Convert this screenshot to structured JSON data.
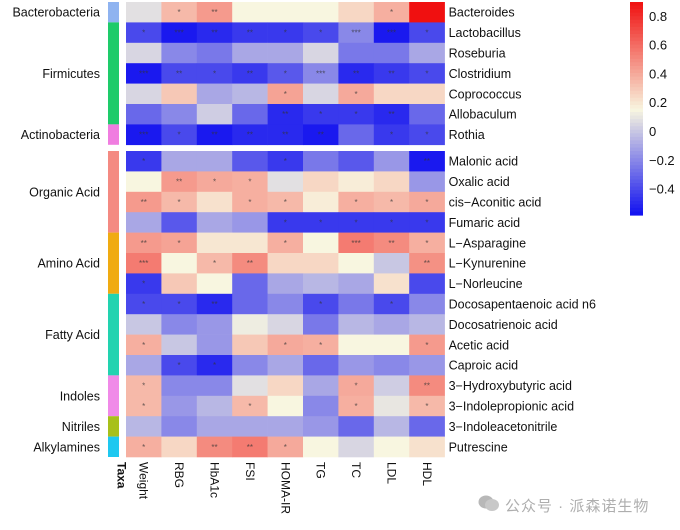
{
  "chart_data": {
    "type": "heatmap",
    "title": "",
    "xlabel": "",
    "ylabel": "",
    "columns": [
      "Weight",
      "RBG",
      "HbA1c",
      "FSI",
      "HOMA-IR",
      "TG",
      "TC",
      "LDL",
      "HDL"
    ],
    "taxa_column_label": "Taxa",
    "row_blocks": [
      {
        "name": "microbes",
        "groups": [
          {
            "name": "Bacterobacteria",
            "color": "#8fb3f0",
            "rows": [
              "Bacteroides"
            ]
          },
          {
            "name": "Firmicutes",
            "color": "#1ecb6a",
            "rows": [
              "Lactobacillus",
              "Roseburia",
              "Clostridium",
              "Coprococcus",
              "Allobaculum"
            ]
          },
          {
            "name": "Actinobacteria",
            "color": "#f07de0",
            "rows": [
              "Rothia"
            ]
          }
        ]
      },
      {
        "name": "metabolites",
        "groups": [
          {
            "name": "Organic Acid",
            "color": "#f48a82",
            "rows": [
              "Malonic acid",
              "Oxalic acid",
              "cis-Aconitic acid",
              "Fumaric acid"
            ]
          },
          {
            "name": "Amino Acid",
            "color": "#f0ab12",
            "rows": [
              "L-Asparagine",
              "L-Kynurenine",
              "L-Norleucine"
            ]
          },
          {
            "name": "Fatty Acid",
            "color": "#22d3b0",
            "rows": [
              "Docosapentaenoic acid n6",
              "Docosatrienoic acid",
              "Acetic acid",
              "Caproic acid"
            ]
          },
          {
            "name": "Indoles",
            "color": "#f08ae8",
            "rows": [
              "3-Hydroxybutyric acid",
              "3-Indolepropionic acid"
            ]
          },
          {
            "name": "Nitriles",
            "color": "#a8c01a",
            "rows": [
              "3-Indoleacetonitrile"
            ]
          },
          {
            "name": "Alkylamines",
            "color": "#1ec8f0",
            "rows": [
              "Putrescine"
            ]
          }
        ]
      }
    ],
    "values": {
      "Bacteroides": [
        0.08,
        0.35,
        0.45,
        0.15,
        0.15,
        0.15,
        0.25,
        0.38,
        0.9
      ],
      "Lactobacillus": [
        -0.4,
        -0.55,
        -0.5,
        -0.45,
        -0.45,
        -0.4,
        -0.2,
        -0.55,
        -0.4
      ],
      "Roseburia": [
        0.05,
        -0.2,
        -0.25,
        -0.1,
        -0.1,
        0.05,
        -0.25,
        -0.25,
        -0.1
      ],
      "Clostridium": [
        -0.55,
        -0.4,
        -0.4,
        -0.45,
        -0.35,
        -0.2,
        -0.5,
        -0.45,
        -0.4
      ],
      "Coprococcus": [
        0.05,
        0.3,
        -0.1,
        -0.05,
        0.42,
        0.05,
        0.4,
        0.25,
        0.25
      ],
      "Allobaculum": [
        -0.3,
        -0.2,
        0.02,
        -0.3,
        -0.5,
        -0.45,
        -0.45,
        -0.5,
        -0.3
      ],
      "Rothia": [
        -0.55,
        -0.4,
        -0.55,
        -0.5,
        -0.5,
        -0.55,
        -0.3,
        -0.45,
        -0.4
      ],
      "Malonic acid": [
        -0.45,
        -0.1,
        -0.1,
        -0.35,
        -0.45,
        -0.25,
        -0.35,
        -0.15,
        -0.55
      ],
      "Oxalic acid": [
        0.15,
        0.45,
        0.4,
        0.38,
        0.08,
        0.25,
        0.18,
        0.25,
        -0.15
      ],
      "cis-Aconitic acid": [
        0.45,
        0.35,
        0.22,
        0.38,
        0.35,
        0.18,
        0.38,
        0.35,
        0.4
      ],
      "Fumaric acid": [
        -0.1,
        -0.35,
        -0.1,
        -0.15,
        -0.45,
        -0.45,
        -0.45,
        -0.45,
        -0.45
      ],
      "L-Asparagine": [
        0.45,
        0.42,
        0.2,
        0.2,
        0.38,
        0.15,
        0.55,
        0.5,
        0.38
      ],
      "L-Kynurenine": [
        0.55,
        0.15,
        0.35,
        0.5,
        0.25,
        0.25,
        0.15,
        0.0,
        0.48
      ],
      "L-Norleucine": [
        -0.45,
        0.3,
        0.15,
        -0.3,
        -0.1,
        -0.05,
        -0.1,
        0.22,
        -0.4
      ],
      "Docosapentaenoic acid n6": [
        -0.4,
        -0.4,
        -0.5,
        -0.3,
        -0.2,
        -0.4,
        -0.25,
        -0.4,
        -0.2
      ],
      "Docosatrienoic acid": [
        0.0,
        -0.2,
        -0.15,
        0.12,
        0.05,
        -0.25,
        -0.05,
        -0.1,
        -0.05
      ],
      "Acetic acid": [
        0.38,
        0.0,
        -0.15,
        0.3,
        0.4,
        0.38,
        0.15,
        0.15,
        0.45
      ],
      "Caproic acid": [
        -0.1,
        -0.4,
        -0.5,
        -0.2,
        -0.1,
        -0.3,
        -0.15,
        -0.2,
        -0.15
      ],
      "3-Hydroxybutyric acid": [
        0.35,
        -0.2,
        -0.2,
        0.08,
        0.25,
        -0.1,
        0.4,
        0.02,
        0.5
      ],
      "3-Indolepropionic acid": [
        0.35,
        -0.15,
        -0.05,
        0.35,
        0.15,
        -0.2,
        0.38,
        0.1,
        0.35
      ],
      "3-Indoleacetonitrile": [
        -0.05,
        -0.2,
        -0.1,
        -0.1,
        -0.1,
        -0.15,
        -0.3,
        -0.05,
        -0.3
      ],
      "Putrescine": [
        0.38,
        0.25,
        0.5,
        0.55,
        0.4,
        0.15,
        0.05,
        0.15,
        0.22
      ]
    },
    "significance": {
      "Bacteroides": [
        "",
        "*",
        "**",
        "",
        "",
        "",
        "",
        "*",
        ""
      ],
      "Lactobacillus": [
        "*",
        "***",
        "**",
        "**",
        "*",
        "*",
        "***",
        "***",
        "*"
      ],
      "Roseburia": [
        "",
        "",
        "",
        "",
        "",
        "",
        "",
        "",
        ""
      ],
      "Clostridium": [
        "***",
        "**",
        "*",
        "**",
        "*",
        "***",
        "**",
        "**",
        "*"
      ],
      "Coprococcus": [
        "",
        "",
        "",
        "",
        "*",
        "",
        "*",
        "",
        ""
      ],
      "Allobaculum": [
        "",
        "",
        "",
        "",
        "**",
        "*",
        "*",
        "**",
        ""
      ],
      "Rothia": [
        "***",
        "*",
        "**",
        "**",
        "**",
        "**",
        "",
        "*",
        "*"
      ],
      "Malonic acid": [
        "*",
        "",
        "",
        "",
        "*",
        "",
        "",
        "",
        "**"
      ],
      "Oxalic acid": [
        "",
        "**",
        "*",
        "*",
        "",
        "",
        "",
        "",
        ""
      ],
      "cis-Aconitic acid": [
        "**",
        "*",
        "",
        "*",
        "*",
        "",
        "*",
        "*",
        "*"
      ],
      "Fumaric acid": [
        "",
        "",
        "",
        "",
        "*",
        "*",
        "*",
        "*",
        "*"
      ],
      "L-Asparagine": [
        "**",
        "*",
        "",
        "",
        "*",
        "",
        "***",
        "**",
        "*"
      ],
      "L-Kynurenine": [
        "***",
        "",
        "*",
        "**",
        "",
        "",
        "",
        "",
        "**"
      ],
      "L-Norleucine": [
        "*",
        "",
        "",
        "",
        "",
        "",
        "",
        "",
        ""
      ],
      "Docosapentaenoic acid n6": [
        "*",
        "*",
        "**",
        "",
        "",
        "*",
        "",
        "*",
        ""
      ],
      "Docosatrienoic acid": [
        "",
        "",
        "",
        "",
        "",
        "",
        "",
        "",
        ""
      ],
      "Acetic acid": [
        "*",
        "",
        "",
        "",
        "*",
        "*",
        "",
        "",
        "*"
      ],
      "Caproic acid": [
        "",
        "*",
        "*",
        "",
        "",
        "",
        "",
        "",
        ""
      ],
      "3-Hydroxybutyric acid": [
        "*",
        "",
        "",
        "",
        "",
        "",
        "*",
        "",
        "**"
      ],
      "3-Indolepropionic acid": [
        "*",
        "",
        "",
        "*",
        "",
        "",
        "*",
        "",
        "*"
      ],
      "3-Indoleacetonitrile": [
        "",
        "",
        "",
        "",
        "",
        "",
        "",
        "",
        ""
      ],
      "Putrescine": [
        "*",
        "",
        "**",
        "**",
        "*",
        "",
        "",
        "",
        ""
      ]
    },
    "colorbar": {
      "ticks": [
        0.8,
        0.6,
        0.4,
        0.2,
        0,
        -0.2,
        -0.4
      ],
      "tick_labels": [
        "0.8",
        "0.6",
        "0.4",
        "0.2",
        "0",
        "−0.2",
        "−0.4"
      ],
      "range": [
        -0.58,
        0.9
      ],
      "colors": {
        "low": "#1010f0",
        "mid": "#f8f6e0",
        "high": "#f01010"
      },
      "mid_value": 0.15
    },
    "legend_position": "right",
    "grid": false
  },
  "watermark": {
    "text": "公众号 · 派森诺生物",
    "icon": "wechat-icon"
  }
}
